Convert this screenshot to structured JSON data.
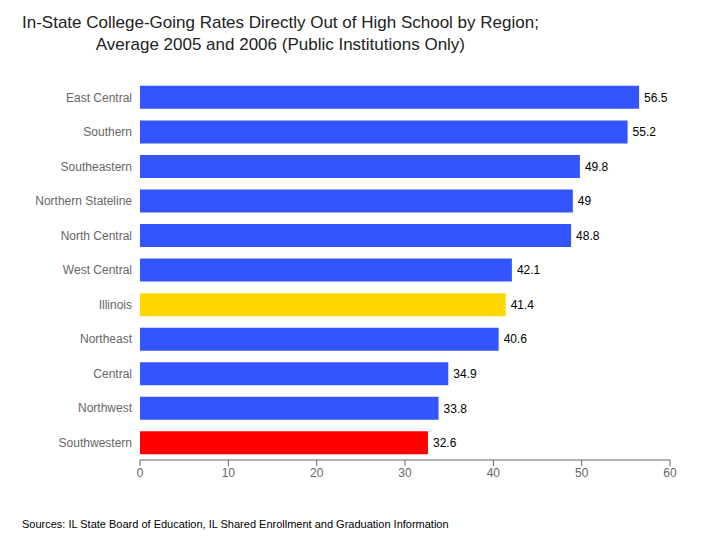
{
  "chart_data": {
    "type": "bar",
    "orientation": "horizontal",
    "title": "In-State College-Going Rates Directly Out of High School by Region;\nAverage 2005 and 2006 (Public Institutions Only)",
    "categories": [
      "East Central",
      "Southern",
      "Southeastern",
      "Northern Stateline",
      "North Central",
      "West Central",
      "Illinois",
      "Northeast",
      "Central",
      "Northwest",
      "Southwestern"
    ],
    "values": [
      56.5,
      55.2,
      49.8,
      49.0,
      48.8,
      42.1,
      41.4,
      40.6,
      34.9,
      33.8,
      32.6
    ],
    "colors": [
      "#3355FF",
      "#3355FF",
      "#3355FF",
      "#3355FF",
      "#3355FF",
      "#3355FF",
      "#FFD700",
      "#3355FF",
      "#3355FF",
      "#3355FF",
      "#FF0000"
    ],
    "xlim": [
      0,
      60
    ],
    "xticks": [
      0,
      10,
      20,
      30,
      40,
      50,
      60
    ],
    "data_labels": true,
    "grid": false,
    "annotations": [
      "Sources: IL State Board of Education, IL Shared Enrollment and Graduation Information"
    ]
  }
}
